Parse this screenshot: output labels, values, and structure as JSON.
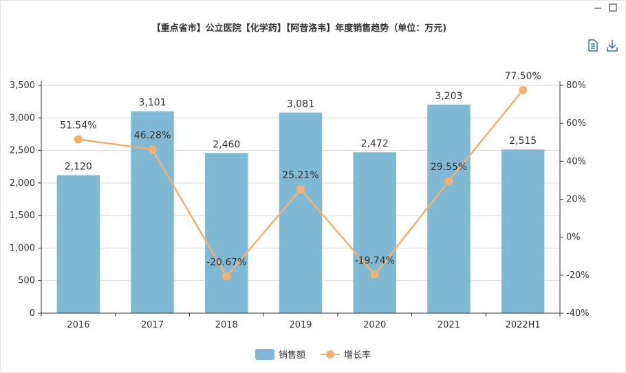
{
  "chart_data": {
    "type": "bar",
    "title": "【重点省市】公立医院【化学药】【阿昔洛韦】年度销售趋势（单位：万元)",
    "categories": [
      "2016",
      "2017",
      "2018",
      "2019",
      "2020",
      "2021",
      "2022H1"
    ],
    "series": [
      {
        "name": "销售额",
        "type": "bar",
        "axis": "left",
        "color": "#80b9d4",
        "values": [
          2120,
          3101,
          2460,
          3081,
          2472,
          3203,
          2515
        ],
        "labels": [
          "2,120",
          "3,101",
          "2,460",
          "3,081",
          "2,472",
          "3,203",
          "2,515"
        ]
      },
      {
        "name": "增长率",
        "type": "line",
        "axis": "right",
        "color": "#f2b06e",
        "values": [
          51.54,
          46.28,
          -20.67,
          25.21,
          -19.74,
          29.55,
          77.5
        ],
        "labels": [
          "51.54%",
          "46.28%",
          "-20.67%",
          "25.21%",
          "-19.74%",
          "29.55%",
          "77.50%"
        ]
      }
    ],
    "y_left": {
      "min": 0,
      "max": 3500,
      "step": 500,
      "tick_labels": [
        "0",
        "500",
        "1,000",
        "1,500",
        "2,000",
        "2,500",
        "3,000",
        "3,500"
      ]
    },
    "y_right": {
      "min": -40,
      "max": 80,
      "step": 20,
      "tick_labels": [
        "-40%",
        "-20%",
        "0%",
        "20%",
        "40%",
        "60%",
        "80%"
      ]
    },
    "grid": true,
    "legend_position": "bottom-center"
  },
  "toolbar": {
    "minimize_icon": "minimize-icon",
    "maximize_icon": "maximize-icon",
    "data_view_icon": "document-icon",
    "download_icon": "download-icon"
  }
}
